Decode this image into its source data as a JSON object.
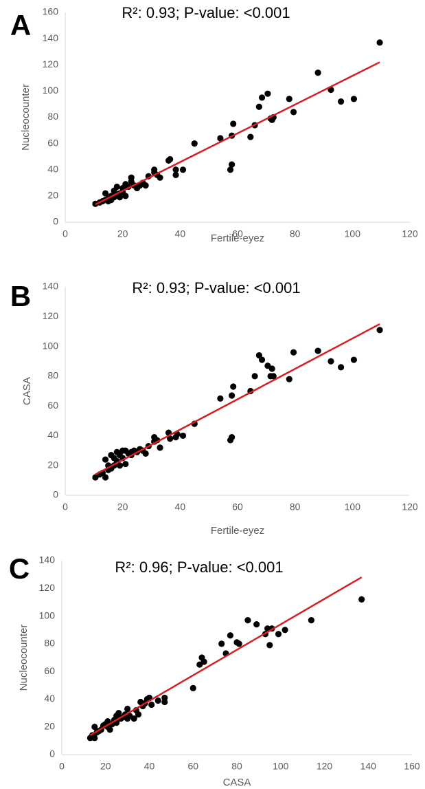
{
  "chart_data": [
    {
      "type": "scatter",
      "panel_label": "A",
      "title": "R²: 0.93; P-value: <0.001",
      "xlabel": "Fertile-eyez",
      "ylabel": "Nucleocounter",
      "color": "#000000",
      "x": [
        10.5,
        12,
        13,
        14,
        14,
        15,
        15,
        16,
        16,
        17,
        17,
        18,
        18,
        19,
        19,
        20,
        20,
        21,
        21,
        22,
        23,
        23,
        24,
        25,
        26,
        27,
        28,
        29,
        31,
        31,
        32,
        33,
        36,
        36.5,
        38.5,
        38.5,
        41,
        45,
        54,
        57.5,
        58,
        58,
        58.5,
        64.5,
        66,
        67.5,
        68.5,
        70.5,
        71.5,
        72,
        72.5,
        78,
        79.5,
        88,
        92.5,
        96,
        100.5,
        109.5
      ],
      "y": [
        14,
        15,
        16,
        22,
        17,
        18,
        16,
        20,
        17,
        24,
        19,
        21,
        27,
        22,
        19,
        23,
        26,
        29,
        20,
        27,
        34,
        31,
        28,
        26,
        28,
        30,
        28,
        35,
        40,
        38,
        36,
        34,
        47,
        48,
        36,
        40,
        40,
        60,
        64,
        40,
        44,
        66,
        75,
        65,
        74,
        88,
        95,
        98,
        79,
        78,
        80,
        94,
        84,
        114,
        101,
        92,
        94,
        137
      ],
      "trendline": {
        "color": "#d42020",
        "x": [
          10.5,
          109.5
        ],
        "y": [
          13.5,
          122
        ]
      },
      "xlim": [
        0,
        120
      ],
      "xticks": [
        0,
        20,
        40,
        60,
        80,
        100,
        120
      ],
      "ylim": [
        0,
        160
      ],
      "yticks": [
        0,
        20,
        40,
        60,
        80,
        100,
        120,
        140,
        160
      ]
    },
    {
      "type": "scatter",
      "panel_label": "B",
      "title": "R²: 0.93; P-value: <0.001",
      "xlabel": "Fertile-eyez",
      "ylabel": "CASA",
      "color": "#000000",
      "x": [
        10.5,
        12,
        13,
        14,
        14,
        15,
        15,
        16,
        16,
        17,
        17,
        18,
        18,
        19,
        19,
        20,
        20,
        21,
        21,
        22,
        23,
        23,
        24,
        25,
        26,
        27,
        28,
        29,
        31,
        31,
        32,
        33,
        36,
        36.5,
        38.5,
        39,
        41,
        45,
        54,
        57.5,
        58,
        58,
        58.5,
        64.5,
        66,
        67.5,
        68.5,
        70.5,
        71.5,
        72,
        72.5,
        78,
        79.5,
        88,
        92.5,
        96,
        100.5,
        109.5
      ],
      "y": [
        12,
        14,
        15,
        24,
        12,
        17,
        20,
        18,
        27,
        20,
        25,
        23,
        29,
        27,
        20,
        30,
        25,
        30,
        21,
        28,
        27,
        29,
        30,
        29,
        31,
        30,
        28,
        33,
        39,
        36,
        37,
        32,
        42,
        38,
        39,
        41,
        40,
        48,
        65,
        37,
        39,
        67,
        73,
        70,
        80,
        94,
        91,
        87,
        80,
        85,
        80,
        78,
        96,
        97,
        90,
        86,
        91,
        111
      ],
      "trendline": {
        "color": "#d42020",
        "x": [
          10.5,
          109.5
        ],
        "y": [
          14,
          115
        ]
      },
      "xlim": [
        0,
        120
      ],
      "xticks": [
        0,
        20,
        40,
        60,
        80,
        100,
        120
      ],
      "ylim": [
        0,
        140
      ],
      "yticks": [
        0,
        20,
        40,
        60,
        80,
        100,
        120,
        140
      ]
    },
    {
      "type": "scatter",
      "panel_label": "C",
      "title": "R²: 0.96; P-value: <0.001",
      "xlabel": "CASA",
      "ylabel": "Nucleocounter",
      "color": "#000000",
      "x": [
        13,
        14,
        15,
        15,
        16,
        17,
        18,
        19,
        20,
        21,
        21,
        22,
        23,
        24,
        25,
        25,
        26,
        27,
        28,
        29,
        30,
        30,
        31,
        33,
        34,
        35,
        36,
        37,
        38,
        39,
        40,
        41,
        44,
        47,
        47,
        60,
        63,
        64,
        65,
        73,
        75,
        77,
        80,
        81,
        85,
        89,
        93,
        94,
        95,
        96,
        99,
        102,
        114,
        137
      ],
      "y": [
        12,
        14,
        12,
        20,
        16,
        17,
        18,
        21,
        22,
        20,
        24,
        18,
        22,
        25,
        28,
        23,
        30,
        26,
        27,
        29,
        33,
        26,
        28,
        26,
        32,
        29,
        38,
        35,
        37,
        40,
        41,
        36,
        39,
        38,
        41,
        48,
        65,
        70,
        67,
        80,
        73,
        86,
        81,
        80,
        97,
        94,
        87,
        91,
        79,
        91,
        87,
        90,
        97,
        112
      ],
      "trendline": {
        "color": "#d42020",
        "x": [
          13,
          137
        ],
        "y": [
          14,
          128
        ]
      },
      "xlim": [
        0,
        160
      ],
      "xticks": [
        0,
        20,
        40,
        60,
        80,
        100,
        120,
        140,
        160
      ],
      "ylim": [
        0,
        140
      ],
      "yticks": [
        0,
        20,
        40,
        60,
        80,
        100,
        120,
        140
      ]
    }
  ]
}
